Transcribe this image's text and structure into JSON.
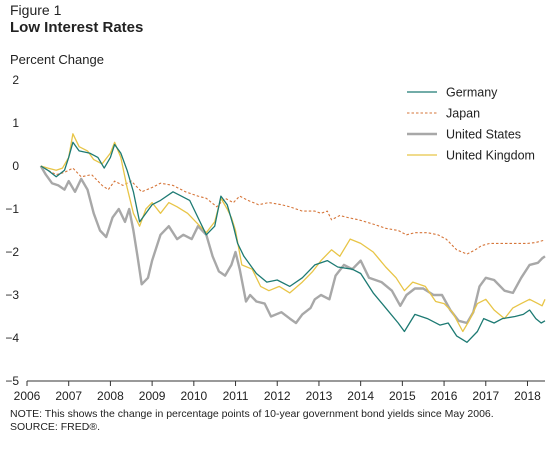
{
  "figure_label": "Figure 1",
  "chart_data": {
    "type": "line",
    "title": "Low Interest Rates",
    "ylabel": "Percent Change",
    "xlabel": "",
    "ylim": [
      -5,
      2
    ],
    "xlim": [
      2006,
      2018.42
    ],
    "y_ticks": [
      2,
      1,
      0,
      -1,
      -2,
      -3,
      -4,
      -5
    ],
    "y_tick_labels": [
      "2",
      "1",
      "0",
      "−1",
      "−2",
      "−3",
      "−4",
      "−5"
    ],
    "x_ticks": [
      2006,
      2007,
      2008,
      2009,
      2010,
      2011,
      2012,
      2013,
      2014,
      2015,
      2016,
      2017,
      2018
    ],
    "x_tick_labels": [
      "2006",
      "2007",
      "2008",
      "2009",
      "2010",
      "2011",
      "2012",
      "2013",
      "2014",
      "2015",
      "2016",
      "2017",
      "2018"
    ],
    "grid": false,
    "legend_position": "top-right",
    "series": [
      {
        "name": "Germany",
        "color": "#1d7a73",
        "style": "solid",
        "points": [
          [
            2006.33,
            0
          ],
          [
            2006.5,
            -0.1
          ],
          [
            2006.7,
            -0.25
          ],
          [
            2006.9,
            -0.1
          ],
          [
            2007.0,
            0.2
          ],
          [
            2007.1,
            0.55
          ],
          [
            2007.25,
            0.35
          ],
          [
            2007.5,
            0.3
          ],
          [
            2007.7,
            0.2
          ],
          [
            2007.85,
            -0.05
          ],
          [
            2008.0,
            0.2
          ],
          [
            2008.1,
            0.5
          ],
          [
            2008.25,
            0.3
          ],
          [
            2008.4,
            -0.1
          ],
          [
            2008.55,
            -0.6
          ],
          [
            2008.7,
            -1.3
          ],
          [
            2008.85,
            -1.1
          ],
          [
            2009.0,
            -0.9
          ],
          [
            2009.2,
            -0.8
          ],
          [
            2009.5,
            -0.6
          ],
          [
            2009.7,
            -0.7
          ],
          [
            2009.9,
            -0.8
          ],
          [
            2010.1,
            -1.2
          ],
          [
            2010.3,
            -1.6
          ],
          [
            2010.5,
            -1.4
          ],
          [
            2010.65,
            -0.7
          ],
          [
            2010.8,
            -0.9
          ],
          [
            2010.95,
            -1.4
          ],
          [
            2011.05,
            -1.8
          ],
          [
            2011.2,
            -2.1
          ],
          [
            2011.5,
            -2.5
          ],
          [
            2011.75,
            -2.7
          ],
          [
            2012.0,
            -2.65
          ],
          [
            2012.3,
            -2.8
          ],
          [
            2012.6,
            -2.6
          ],
          [
            2012.9,
            -2.3
          ],
          [
            2013.2,
            -2.2
          ],
          [
            2013.45,
            -2.35
          ],
          [
            2013.8,
            -2.4
          ],
          [
            2014.0,
            -2.5
          ],
          [
            2014.3,
            -2.95
          ],
          [
            2014.6,
            -3.3
          ],
          [
            2014.9,
            -3.65
          ],
          [
            2015.05,
            -3.85
          ],
          [
            2015.3,
            -3.45
          ],
          [
            2015.6,
            -3.55
          ],
          [
            2015.9,
            -3.7
          ],
          [
            2016.1,
            -3.65
          ],
          [
            2016.3,
            -3.95
          ],
          [
            2016.55,
            -4.1
          ],
          [
            2016.8,
            -3.85
          ],
          [
            2016.95,
            -3.55
          ],
          [
            2017.2,
            -3.65
          ],
          [
            2017.4,
            -3.55
          ],
          [
            2017.7,
            -3.5
          ],
          [
            2017.9,
            -3.45
          ],
          [
            2018.05,
            -3.35
          ],
          [
            2018.2,
            -3.55
          ],
          [
            2018.33,
            -3.65
          ],
          [
            2018.42,
            -3.6
          ]
        ]
      },
      {
        "name": "Japan",
        "color": "#d6763a",
        "style": "dashed",
        "points": [
          [
            2006.33,
            0
          ],
          [
            2006.5,
            -0.1
          ],
          [
            2006.7,
            -0.2
          ],
          [
            2006.9,
            -0.15
          ],
          [
            2007.1,
            -0.05
          ],
          [
            2007.3,
            -0.25
          ],
          [
            2007.55,
            -0.2
          ],
          [
            2007.8,
            -0.45
          ],
          [
            2007.95,
            -0.55
          ],
          [
            2008.1,
            -0.35
          ],
          [
            2008.3,
            -0.45
          ],
          [
            2008.5,
            -0.35
          ],
          [
            2008.75,
            -0.6
          ],
          [
            2009.0,
            -0.5
          ],
          [
            2009.2,
            -0.4
          ],
          [
            2009.5,
            -0.45
          ],
          [
            2009.8,
            -0.6
          ],
          [
            2010.1,
            -0.7
          ],
          [
            2010.3,
            -0.75
          ],
          [
            2010.55,
            -0.95
          ],
          [
            2010.75,
            -0.75
          ],
          [
            2010.95,
            -0.85
          ],
          [
            2011.1,
            -0.7
          ],
          [
            2011.3,
            -0.8
          ],
          [
            2011.55,
            -0.9
          ],
          [
            2011.8,
            -0.85
          ],
          [
            2012.1,
            -0.9
          ],
          [
            2012.3,
            -0.95
          ],
          [
            2012.6,
            -1.05
          ],
          [
            2012.9,
            -1.05
          ],
          [
            2013.05,
            -1.1
          ],
          [
            2013.2,
            -1.05
          ],
          [
            2013.3,
            -1.25
          ],
          [
            2013.5,
            -1.15
          ],
          [
            2013.7,
            -1.2
          ],
          [
            2013.95,
            -1.25
          ],
          [
            2014.3,
            -1.35
          ],
          [
            2014.6,
            -1.45
          ],
          [
            2014.9,
            -1.5
          ],
          [
            2015.1,
            -1.6
          ],
          [
            2015.3,
            -1.55
          ],
          [
            2015.6,
            -1.55
          ],
          [
            2015.85,
            -1.6
          ],
          [
            2016.05,
            -1.7
          ],
          [
            2016.3,
            -1.95
          ],
          [
            2016.55,
            -2.05
          ],
          [
            2016.75,
            -1.95
          ],
          [
            2016.9,
            -1.85
          ],
          [
            2017.1,
            -1.8
          ],
          [
            2017.4,
            -1.8
          ],
          [
            2017.7,
            -1.8
          ],
          [
            2018.0,
            -1.8
          ],
          [
            2018.2,
            -1.78
          ],
          [
            2018.42,
            -1.72
          ]
        ]
      },
      {
        "name": "United States",
        "color": "#a8a8a8",
        "style": "solid",
        "points": [
          [
            2006.33,
            0
          ],
          [
            2006.45,
            -0.2
          ],
          [
            2006.6,
            -0.4
          ],
          [
            2006.75,
            -0.45
          ],
          [
            2006.9,
            -0.55
          ],
          [
            2007.0,
            -0.35
          ],
          [
            2007.15,
            -0.6
          ],
          [
            2007.3,
            -0.3
          ],
          [
            2007.45,
            -0.55
          ],
          [
            2007.6,
            -1.1
          ],
          [
            2007.75,
            -1.5
          ],
          [
            2007.9,
            -1.65
          ],
          [
            2008.05,
            -1.2
          ],
          [
            2008.2,
            -1.0
          ],
          [
            2008.35,
            -1.3
          ],
          [
            2008.45,
            -1.0
          ],
          [
            2008.55,
            -1.5
          ],
          [
            2008.65,
            -2.1
          ],
          [
            2008.75,
            -2.75
          ],
          [
            2008.9,
            -2.6
          ],
          [
            2009.0,
            -2.2
          ],
          [
            2009.2,
            -1.6
          ],
          [
            2009.4,
            -1.4
          ],
          [
            2009.6,
            -1.7
          ],
          [
            2009.75,
            -1.6
          ],
          [
            2009.95,
            -1.7
          ],
          [
            2010.1,
            -1.4
          ],
          [
            2010.3,
            -1.6
          ],
          [
            2010.45,
            -2.1
          ],
          [
            2010.6,
            -2.45
          ],
          [
            2010.75,
            -2.55
          ],
          [
            2010.9,
            -2.3
          ],
          [
            2011.0,
            -2.0
          ],
          [
            2011.1,
            -2.4
          ],
          [
            2011.25,
            -3.15
          ],
          [
            2011.35,
            -3.0
          ],
          [
            2011.5,
            -3.15
          ],
          [
            2011.7,
            -3.2
          ],
          [
            2011.85,
            -3.5
          ],
          [
            2012.1,
            -3.4
          ],
          [
            2012.3,
            -3.55
          ],
          [
            2012.45,
            -3.65
          ],
          [
            2012.6,
            -3.45
          ],
          [
            2012.8,
            -3.3
          ],
          [
            2012.9,
            -3.1
          ],
          [
            2013.05,
            -3.0
          ],
          [
            2013.25,
            -3.1
          ],
          [
            2013.4,
            -2.55
          ],
          [
            2013.6,
            -2.3
          ],
          [
            2013.8,
            -2.4
          ],
          [
            2014.0,
            -2.2
          ],
          [
            2014.2,
            -2.6
          ],
          [
            2014.5,
            -2.7
          ],
          [
            2014.75,
            -2.9
          ],
          [
            2014.95,
            -3.25
          ],
          [
            2015.1,
            -3.0
          ],
          [
            2015.3,
            -2.85
          ],
          [
            2015.5,
            -2.85
          ],
          [
            2015.75,
            -3.0
          ],
          [
            2015.95,
            -3.0
          ],
          [
            2016.15,
            -3.35
          ],
          [
            2016.35,
            -3.6
          ],
          [
            2016.55,
            -3.65
          ],
          [
            2016.7,
            -3.4
          ],
          [
            2016.85,
            -2.8
          ],
          [
            2017.0,
            -2.6
          ],
          [
            2017.2,
            -2.65
          ],
          [
            2017.45,
            -2.9
          ],
          [
            2017.65,
            -2.95
          ],
          [
            2017.85,
            -2.6
          ],
          [
            2018.05,
            -2.3
          ],
          [
            2018.25,
            -2.25
          ],
          [
            2018.35,
            -2.15
          ],
          [
            2018.42,
            -2.1
          ]
        ]
      },
      {
        "name": "United Kingdom",
        "color": "#e8c547",
        "style": "solid",
        "points": [
          [
            2006.33,
            0
          ],
          [
            2006.5,
            -0.05
          ],
          [
            2006.7,
            -0.1
          ],
          [
            2006.85,
            -0.05
          ],
          [
            2007.0,
            0.2
          ],
          [
            2007.1,
            0.75
          ],
          [
            2007.25,
            0.45
          ],
          [
            2007.45,
            0.35
          ],
          [
            2007.6,
            0.15
          ],
          [
            2007.8,
            0.05
          ],
          [
            2008.0,
            0.3
          ],
          [
            2008.1,
            0.55
          ],
          [
            2008.25,
            0.2
          ],
          [
            2008.4,
            -0.5
          ],
          [
            2008.55,
            -1.1
          ],
          [
            2008.7,
            -1.4
          ],
          [
            2008.85,
            -1.0
          ],
          [
            2009.0,
            -0.85
          ],
          [
            2009.2,
            -1.1
          ],
          [
            2009.4,
            -0.85
          ],
          [
            2009.6,
            -0.95
          ],
          [
            2009.85,
            -1.1
          ],
          [
            2010.05,
            -1.3
          ],
          [
            2010.3,
            -1.55
          ],
          [
            2010.5,
            -1.3
          ],
          [
            2010.65,
            -0.75
          ],
          [
            2010.8,
            -1.0
          ],
          [
            2010.9,
            -1.2
          ],
          [
            2011.0,
            -1.5
          ],
          [
            2011.15,
            -2.3
          ],
          [
            2011.4,
            -2.4
          ],
          [
            2011.6,
            -2.8
          ],
          [
            2011.8,
            -2.9
          ],
          [
            2012.05,
            -2.8
          ],
          [
            2012.3,
            -2.95
          ],
          [
            2012.6,
            -2.7
          ],
          [
            2012.85,
            -2.45
          ],
          [
            2013.05,
            -2.2
          ],
          [
            2013.3,
            -1.95
          ],
          [
            2013.5,
            -2.1
          ],
          [
            2013.75,
            -1.7
          ],
          [
            2014.0,
            -1.8
          ],
          [
            2014.3,
            -2.0
          ],
          [
            2014.6,
            -2.35
          ],
          [
            2014.85,
            -2.6
          ],
          [
            2015.05,
            -2.9
          ],
          [
            2015.25,
            -2.7
          ],
          [
            2015.55,
            -2.8
          ],
          [
            2015.8,
            -3.15
          ],
          [
            2016.0,
            -3.2
          ],
          [
            2016.2,
            -3.4
          ],
          [
            2016.45,
            -3.85
          ],
          [
            2016.6,
            -3.6
          ],
          [
            2016.8,
            -3.2
          ],
          [
            2017.0,
            -3.1
          ],
          [
            2017.2,
            -3.35
          ],
          [
            2017.45,
            -3.55
          ],
          [
            2017.65,
            -3.3
          ],
          [
            2017.85,
            -3.2
          ],
          [
            2018.05,
            -3.1
          ],
          [
            2018.25,
            -3.2
          ],
          [
            2018.35,
            -3.25
          ],
          [
            2018.42,
            -3.1
          ]
        ]
      }
    ]
  },
  "note": "NOTE: This shows the change in percentage points of 10-year government bond yields since May 2006.",
  "source": "SOURCE: FRED®."
}
